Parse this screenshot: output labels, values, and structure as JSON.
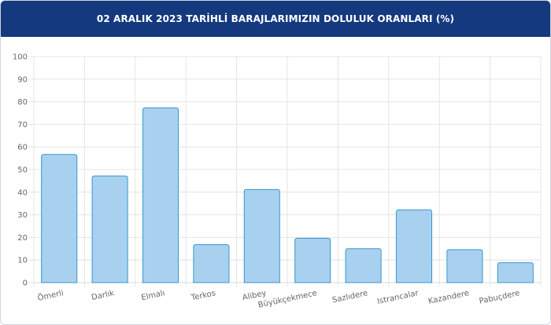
{
  "chart_data": {
    "type": "bar",
    "title": "02 ARALIK 2023 TARİHLİ BARAJLARIMIZIN DOLULUK ORANLARI (%)",
    "xlabel": "",
    "ylabel": "",
    "categories": [
      "Ömerli",
      "Darlık",
      "Elmalı",
      "Terkos",
      "Alibey",
      "Büyükçekmece",
      "Sazlıdere",
      "Istrancalar",
      "Kazandere",
      "Pabuçdere"
    ],
    "values": [
      56.7,
      47.2,
      77.3,
      16.8,
      41.2,
      19.6,
      15.0,
      32.2,
      14.6,
      8.8
    ],
    "ylim": [
      0,
      100
    ],
    "yticks": [
      0,
      10,
      20,
      30,
      40,
      50,
      60,
      70,
      80,
      90,
      100
    ],
    "grid": true,
    "legend": "none",
    "colors": {
      "bar_fill": "#a7d1ee",
      "bar_stroke": "#3b95cf",
      "grid": "#e4e4e4",
      "header": "#15397f"
    }
  }
}
